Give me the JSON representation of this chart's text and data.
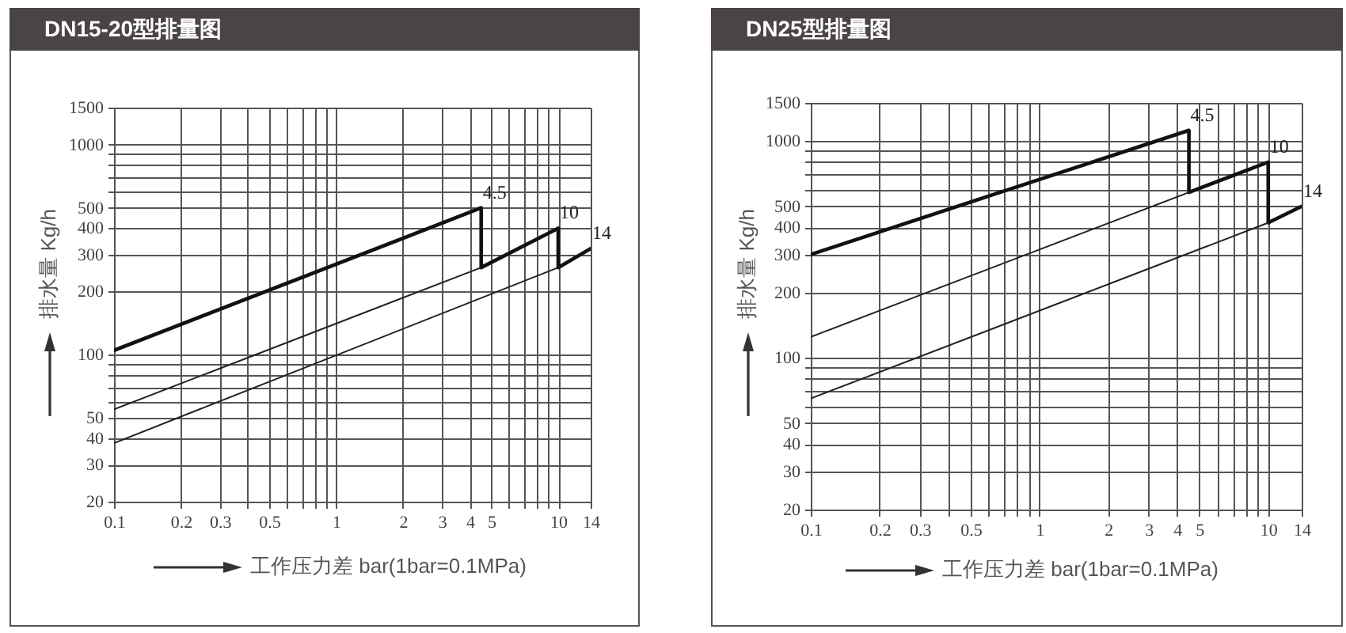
{
  "chart_data": [
    {
      "type": "line",
      "title": "DN15-20型排量图",
      "xlabel": "工作压力差 bar(1bar=0.1MPa)",
      "ylabel": "排水量 Kg/h",
      "log": "xy",
      "grid": true,
      "xlim": [
        0.1,
        14
      ],
      "ylim": [
        20,
        1500
      ],
      "xticks": [
        0.1,
        0.2,
        0.3,
        {
          "value": 0.4,
          "label": null
        },
        0.5,
        {
          "value": 0.6,
          "label": null
        },
        {
          "value": 0.7,
          "label": null
        },
        {
          "value": 0.8,
          "label": null
        },
        {
          "value": 0.9,
          "label": null
        },
        1,
        2,
        3,
        4,
        5,
        {
          "value": 6,
          "label": null
        },
        {
          "value": 7,
          "label": null
        },
        {
          "value": 8,
          "label": null
        },
        {
          "value": 9,
          "label": null
        },
        10,
        14
      ],
      "yticks": [
        20,
        30,
        40,
        50,
        {
          "value": 60,
          "label": null
        },
        {
          "value": 70,
          "label": null
        },
        {
          "value": 80,
          "label": null
        },
        {
          "value": 90,
          "label": null
        },
        100,
        200,
        300,
        400,
        500,
        {
          "value": 600,
          "label": null
        },
        {
          "value": 700,
          "label": null
        },
        {
          "value": 800,
          "label": null
        },
        {
          "value": 900,
          "label": null
        },
        1000,
        1500
      ],
      "series": [
        {
          "color": "#111111",
          "x": [
            0.1,
            4.5,
            4.5,
            10,
            10,
            14
          ],
          "values": [
            105,
            500,
            260,
            400,
            260,
            320
          ]
        },
        {
          "color": "#222222",
          "x": [
            0.1,
            4.5
          ],
          "values": [
            55,
            260
          ]
        },
        {
          "color": "#222222",
          "x": [
            0.1,
            10
          ],
          "values": [
            38,
            260
          ]
        }
      ],
      "annotations": [
        {
          "text": "4.5",
          "x": 4.5,
          "y": 500
        },
        {
          "text": "10",
          "x": 10,
          "y": 400
        },
        {
          "text": "14",
          "x": 14,
          "y": 320
        }
      ]
    },
    {
      "type": "line",
      "title": "DN25型排量图",
      "xlabel": "工作压力差 bar(1bar=0.1MPa)",
      "ylabel": "排水量 Kg/h",
      "log": "xy",
      "grid": true,
      "xlim": [
        0.1,
        14
      ],
      "ylim": [
        20,
        1500
      ],
      "xticks": [
        0.1,
        0.2,
        0.3,
        {
          "value": 0.4,
          "label": null
        },
        0.5,
        {
          "value": 0.6,
          "label": null
        },
        {
          "value": 0.7,
          "label": null
        },
        {
          "value": 0.8,
          "label": null
        },
        {
          "value": 0.9,
          "label": null
        },
        1,
        2,
        3,
        4,
        5,
        {
          "value": 6,
          "label": null
        },
        {
          "value": 7,
          "label": null
        },
        {
          "value": 8,
          "label": null
        },
        {
          "value": 9,
          "label": null
        },
        10,
        14
      ],
      "yticks": [
        20,
        30,
        40,
        50,
        {
          "value": 60,
          "label": null
        },
        {
          "value": 70,
          "label": null
        },
        {
          "value": 80,
          "label": null
        },
        {
          "value": 90,
          "label": null
        },
        100,
        200,
        300,
        400,
        500,
        {
          "value": 600,
          "label": null
        },
        {
          "value": 700,
          "label": null
        },
        {
          "value": 800,
          "label": null
        },
        {
          "value": 900,
          "label": null
        },
        1000,
        1500
      ],
      "series": [
        {
          "color": "#111111",
          "x": [
            0.1,
            4.5,
            4.5,
            10,
            10,
            14
          ],
          "values": [
            300,
            1120,
            580,
            800,
            420,
            500
          ]
        },
        {
          "color": "#222222",
          "x": [
            0.1,
            4.5
          ],
          "values": [
            125,
            580
          ]
        },
        {
          "color": "#222222",
          "x": [
            0.1,
            10
          ],
          "values": [
            65,
            420
          ]
        }
      ],
      "annotations": [
        {
          "text": "4.5",
          "x": 4.5,
          "y": 1120
        },
        {
          "text": "10",
          "x": 10,
          "y": 800
        },
        {
          "text": "14",
          "x": 14,
          "y": 500
        }
      ]
    }
  ]
}
